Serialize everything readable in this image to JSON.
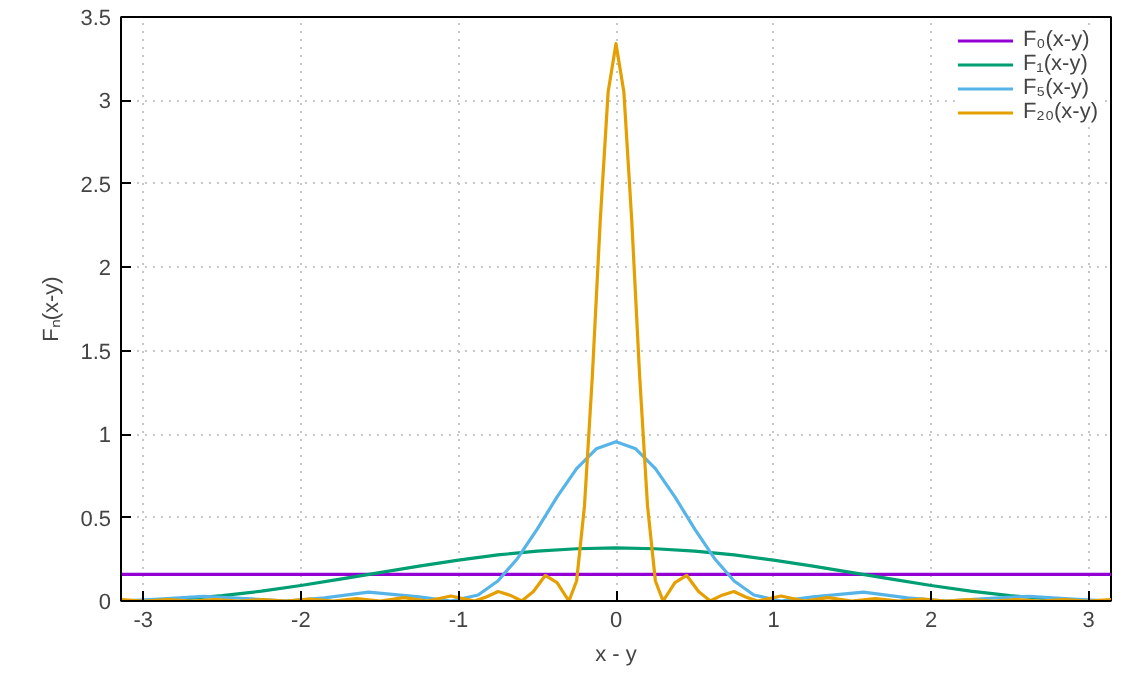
{
  "chart_data": {
    "type": "line",
    "xlabel": "x - y",
    "ylabel": "Fₙ(x-y)",
    "xlim": [
      -3.1416,
      3.1416
    ],
    "ylim": [
      0,
      3.5
    ],
    "xticks": [
      -3,
      -2,
      -1,
      0,
      1,
      2,
      3
    ],
    "yticks": [
      0,
      0.5,
      1,
      1.5,
      2,
      2.5,
      3,
      3.5
    ],
    "grid": true,
    "legend": "top right",
    "marker": "none",
    "line_style": "solid",
    "series": [
      {
        "name": "F₀(x-y)",
        "color": "#9400d3",
        "x": [
          -3.1416,
          3.1416
        ],
        "values": [
          0.159,
          0.159
        ]
      },
      {
        "name": "F₁(x-y)",
        "color": "#009e73",
        "x": [
          -3.1416,
          -3,
          -2.75,
          -2.5,
          -2.25,
          -2,
          -1.75,
          -1.5,
          -1.25,
          -1,
          -0.75,
          -0.5,
          -0.25,
          0,
          0.25,
          0.5,
          0.75,
          1,
          1.25,
          1.5,
          1.75,
          2,
          2.25,
          2.5,
          2.75,
          3,
          3.1416
        ],
        "values": [
          0,
          0.002,
          0.012,
          0.032,
          0.059,
          0.093,
          0.131,
          0.17,
          0.209,
          0.245,
          0.276,
          0.299,
          0.313,
          0.318,
          0.313,
          0.299,
          0.276,
          0.245,
          0.209,
          0.17,
          0.131,
          0.093,
          0.059,
          0.032,
          0.012,
          0.002,
          0
        ]
      },
      {
        "name": "F₅(x-y)",
        "color": "#56b4e9",
        "x": [
          -3.1416,
          -2.9,
          -2.618,
          -2.35,
          -2.094,
          -1.85,
          -1.571,
          -1.25,
          -1.047,
          -0.875,
          -0.75,
          -0.625,
          -0.5,
          -0.375,
          -0.25,
          -0.125,
          0,
          0.125,
          0.25,
          0.375,
          0.5,
          0.625,
          0.75,
          0.875,
          1.047,
          1.25,
          1.571,
          1.85,
          2.094,
          2.35,
          2.618,
          2.9,
          3.1416
        ],
        "values": [
          0,
          0.012,
          0.028,
          0.015,
          0,
          0.019,
          0.053,
          0.025,
          0,
          0.036,
          0.12,
          0.255,
          0.431,
          0.622,
          0.793,
          0.912,
          0.955,
          0.912,
          0.793,
          0.622,
          0.431,
          0.255,
          0.12,
          0.036,
          0,
          0.025,
          0.053,
          0.019,
          0,
          0.015,
          0.028,
          0.012,
          0
        ]
      },
      {
        "name": "F₂₀(x-y)",
        "color": "#e69f00",
        "x": [
          -3.1416,
          -2.992,
          -2.842,
          -2.693,
          -2.543,
          -2.394,
          -2.244,
          -2.094,
          -1.945,
          -1.795,
          -1.646,
          -1.496,
          -1.346,
          -1.197,
          -1.047,
          -0.898,
          -0.823,
          -0.748,
          -0.673,
          -0.598,
          -0.524,
          -0.449,
          -0.374,
          -0.299,
          -0.25,
          -0.2,
          -0.15,
          -0.1,
          -0.05,
          0,
          0.05,
          0.1,
          0.15,
          0.2,
          0.25,
          0.299,
          0.374,
          0.449,
          0.524,
          0.598,
          0.673,
          0.748,
          0.823,
          0.898,
          1.047,
          1.197,
          1.346,
          1.496,
          1.646,
          1.795,
          1.945,
          2.094,
          2.244,
          2.394,
          2.543,
          2.693,
          2.842,
          2.992,
          3.1416
        ],
        "values": [
          0.008,
          0,
          0.008,
          0,
          0.008,
          0,
          0.009,
          0,
          0.011,
          0,
          0.014,
          0,
          0.02,
          0,
          0.03,
          0,
          0.024,
          0.057,
          0.035,
          0,
          0.057,
          0.153,
          0.11,
          0,
          0.12,
          0.57,
          1.35,
          2.28,
          3.05,
          3.34,
          3.05,
          2.28,
          1.35,
          0.57,
          0.12,
          0,
          0.11,
          0.153,
          0.057,
          0,
          0.035,
          0.057,
          0.024,
          0,
          0.03,
          0,
          0.02,
          0,
          0.014,
          0,
          0.011,
          0,
          0.009,
          0,
          0.008,
          0,
          0.008,
          0,
          0.008
        ]
      }
    ]
  }
}
